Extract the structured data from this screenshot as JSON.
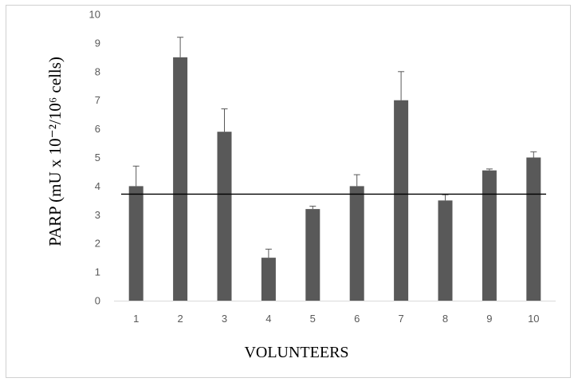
{
  "chart_data": {
    "type": "bar",
    "categories": [
      "1",
      "2",
      "3",
      "4",
      "5",
      "6",
      "7",
      "8",
      "9",
      "10"
    ],
    "values": [
      4.0,
      8.5,
      5.9,
      1.5,
      3.2,
      4.0,
      7.0,
      3.5,
      4.55,
      5.0
    ],
    "error_upper": [
      0.7,
      0.7,
      0.8,
      0.3,
      0.1,
      0.4,
      1.0,
      0.2,
      0.05,
      0.2
    ],
    "reference_line": 3.72,
    "ylim": [
      0,
      10
    ],
    "yticks": [
      "0",
      "1",
      "2",
      "3",
      "4",
      "5",
      "6",
      "7",
      "8",
      "9",
      "10"
    ],
    "xlabel": "VOLUNTEERS",
    "ylabel": "PARP (mU  x 10⁻²/10⁶ cells)",
    "bar_color": "#595959",
    "grid": false
  }
}
